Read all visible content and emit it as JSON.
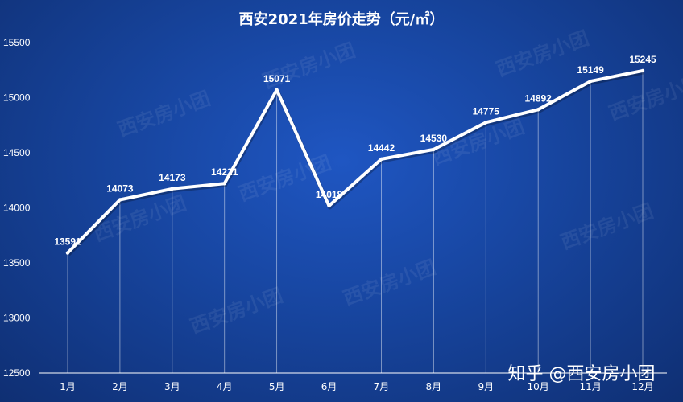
{
  "chart_data": {
    "type": "line",
    "title": "西安2021年房价走势（元/㎡）",
    "categories": [
      "1月",
      "2月",
      "3月",
      "4月",
      "5月",
      "6月",
      "7月",
      "8月",
      "9月",
      "10月",
      "11月",
      "12月"
    ],
    "values": [
      13591,
      14073,
      14173,
      14221,
      15071,
      14018,
      14442,
      14530,
      14775,
      14892,
      15149,
      15245
    ],
    "ylim": [
      12500,
      15500
    ],
    "yticks": [
      12500,
      13000,
      13500,
      14000,
      14500,
      15000,
      15500
    ],
    "xlabel": "",
    "ylabel": "",
    "grid": false,
    "line_color": "#ffffff"
  },
  "watermark_text": "西安房小团",
  "brand_text": "知乎 @西安房小团"
}
